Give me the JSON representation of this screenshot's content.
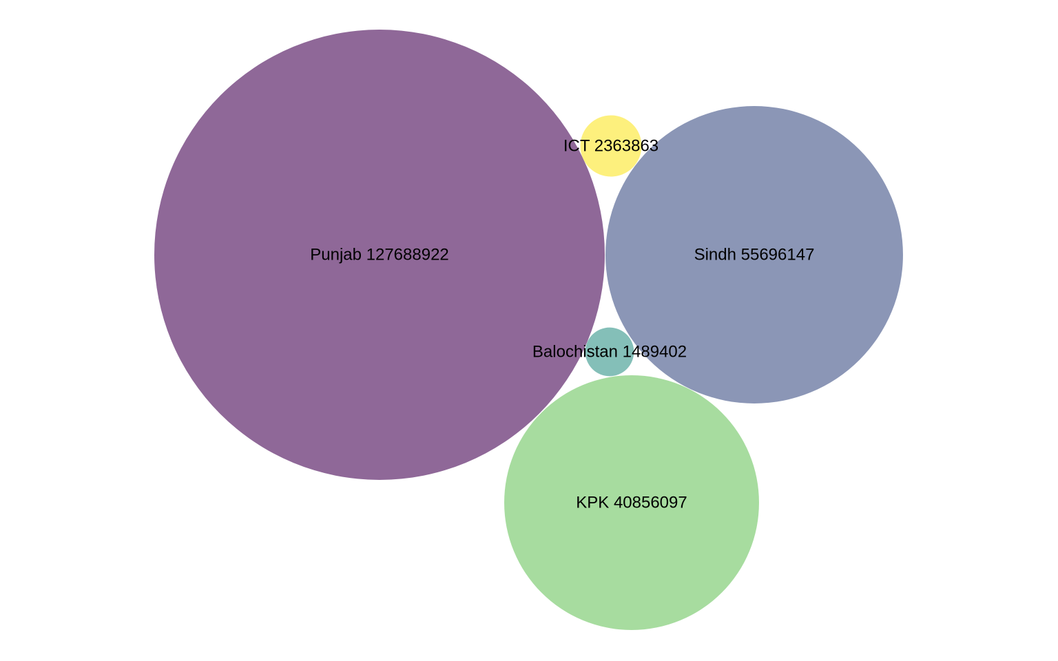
{
  "chart_data": {
    "type": "bubble",
    "title": "",
    "points": [
      {
        "label": "Punjab 127688922",
        "category": "Punjab",
        "value": 127688922,
        "color": "#8f6898"
      },
      {
        "label": "Sindh 55696147",
        "category": "Sindh",
        "value": 55696147,
        "color": "#8b96b6"
      },
      {
        "label": "KPK 40856097",
        "category": "KPK",
        "value": 40856097,
        "color": "#a7dc9f"
      },
      {
        "label": "ICT 2363863",
        "category": "ICT",
        "value": 2363863,
        "color": "#fdf07d"
      },
      {
        "label": "Balochistan 1489402",
        "category": "Balochistan",
        "value": 1489402,
        "color": "#84bfb8"
      }
    ]
  }
}
